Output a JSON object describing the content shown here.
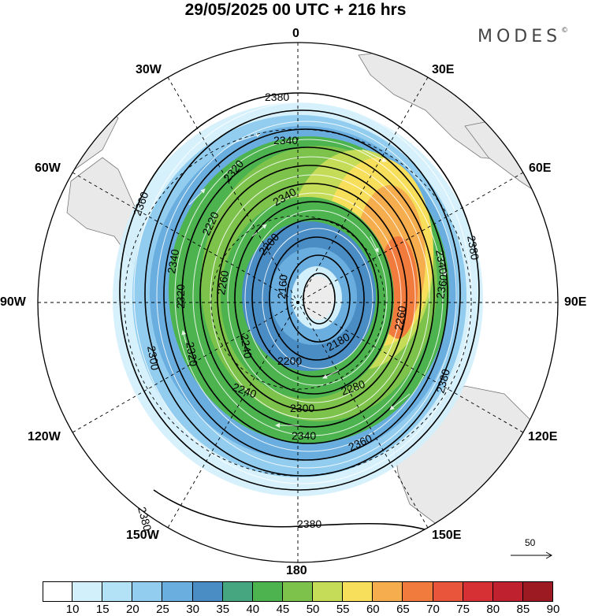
{
  "title": "29/05/2025  00 UTC  + 216 hrs",
  "brand": "MODES",
  "brand_mark": "©",
  "longitude_labels": {
    "top": "0",
    "top_right": "30E",
    "right_upper": "60E",
    "right": "90E",
    "right_lower": "120E",
    "bottom_right": "150E",
    "bottom": "180",
    "bottom_left": "150W",
    "left_lower": "120W",
    "left": "90W",
    "left_upper": "60W",
    "top_left": "30W"
  },
  "reference_vector": "50",
  "contour_labels": [
    "2380",
    "2340",
    "2320",
    "2300",
    "2280",
    "2260",
    "2240",
    "2220",
    "2200",
    "2180",
    "2160",
    "2360",
    "2380",
    "2340",
    "2360",
    "2300",
    "2280",
    "2260",
    "2300",
    "2320",
    "2360",
    "2340",
    "2380",
    "2360",
    "2320",
    "2340",
    "2380",
    "2240",
    "2200",
    "2220"
  ],
  "colorbar": {
    "ticks": [
      "10",
      "15",
      "20",
      "25",
      "30",
      "35",
      "40",
      "45",
      "50",
      "55",
      "60",
      "65",
      "70",
      "75",
      "80",
      "85",
      "90"
    ],
    "colors": [
      "#ffffff",
      "#d2f0fb",
      "#b3e2f7",
      "#92cdf0",
      "#6aaedf",
      "#4a8dc4",
      "#45a67f",
      "#4cb34f",
      "#7cc24b",
      "#c4dc57",
      "#f7df5b",
      "#f6ad4d",
      "#f17b3c",
      "#e8553a",
      "#d73034",
      "#c0212f",
      "#9c1a22"
    ]
  },
  "colors": {
    "land": "#e9e9e9",
    "contour": "#000000",
    "streamline": "#ffffff"
  }
}
